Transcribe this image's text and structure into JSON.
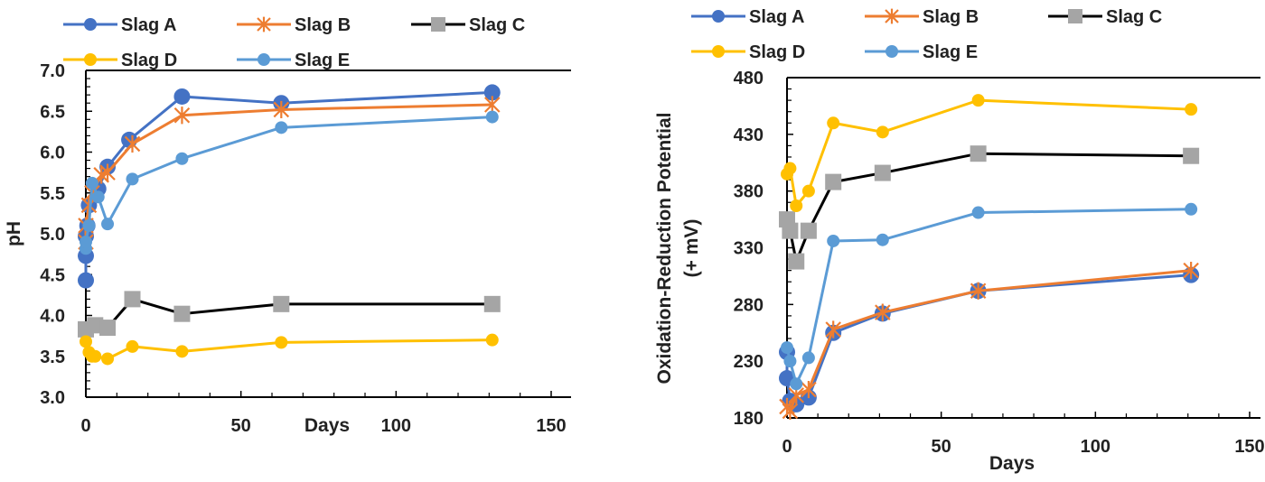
{
  "chart_data": [
    {
      "type": "line",
      "xlabel": "Days",
      "ylabel": "pH",
      "xlim": [
        0,
        150
      ],
      "ylim": [
        3.0,
        7.0
      ],
      "xticks": [
        "0",
        "50",
        "100",
        "150"
      ],
      "yticks": [
        "3.0",
        "3.5",
        "4.0",
        "4.5",
        "5.0",
        "5.5",
        "6.0",
        "6.5",
        "7.0"
      ],
      "grid": false,
      "legend": "top",
      "series": [
        {
          "name": "Slag A",
          "color": "#4472C4",
          "marker": "circle",
          "points": [
            [
              0,
              4.43
            ],
            [
              0,
              4.73
            ],
            [
              0,
              4.97
            ],
            [
              0.5,
              5.1
            ],
            [
              1,
              5.35
            ],
            [
              4,
              5.55
            ],
            [
              7,
              5.82
            ],
            [
              14,
              6.15
            ],
            [
              31,
              6.68
            ],
            [
              63,
              6.6
            ],
            [
              131,
              6.73
            ]
          ]
        },
        {
          "name": "Slag B",
          "color": "#ED7D31",
          "marker": "asterisk",
          "points": [
            [
              0,
              4.9
            ],
            [
              0,
              5.1
            ],
            [
              1,
              5.35
            ],
            [
              2,
              5.5
            ],
            [
              5,
              5.72
            ],
            [
              7,
              5.75
            ],
            [
              15,
              6.1
            ],
            [
              31,
              6.45
            ],
            [
              63,
              6.52
            ],
            [
              131,
              6.58
            ]
          ]
        },
        {
          "name": "Slag C",
          "color": "#000000",
          "markerColor": "#A5A5A5",
          "marker": "square",
          "points": [
            [
              0,
              3.83
            ],
            [
              3,
              3.88
            ],
            [
              7,
              3.85
            ],
            [
              15,
              4.2
            ],
            [
              31,
              4.02
            ],
            [
              63,
              4.14
            ],
            [
              131,
              4.14
            ]
          ]
        },
        {
          "name": "Slag D",
          "color": "#FFC000",
          "marker": "circle",
          "points": [
            [
              0,
              3.68
            ],
            [
              1,
              3.55
            ],
            [
              2,
              3.5
            ],
            [
              3,
              3.5
            ],
            [
              7,
              3.47
            ],
            [
              15,
              3.62
            ],
            [
              31,
              3.56
            ],
            [
              63,
              3.67
            ],
            [
              131,
              3.7
            ]
          ]
        },
        {
          "name": "Slag E",
          "color": "#5B9BD5",
          "marker": "circle",
          "points": [
            [
              0,
              4.82
            ],
            [
              0,
              4.9
            ],
            [
              1,
              5.1
            ],
            [
              2,
              5.62
            ],
            [
              4,
              5.45
            ],
            [
              7,
              5.12
            ],
            [
              15,
              5.67
            ],
            [
              31,
              5.92
            ],
            [
              63,
              6.3
            ],
            [
              131,
              6.43
            ]
          ]
        }
      ]
    },
    {
      "type": "line",
      "xlabel": "Days",
      "ylabel": "Oxidation-Reduction Potential",
      "ylabel2": "(+ mV)",
      "xlim": [
        0,
        150
      ],
      "ylim": [
        180,
        480
      ],
      "xticks": [
        "0",
        "50",
        "100",
        "150"
      ],
      "yticks": [
        "180",
        "230",
        "280",
        "330",
        "380",
        "430",
        "480"
      ],
      "grid": false,
      "legend": "top",
      "series": [
        {
          "name": "Slag A",
          "color": "#4472C4",
          "marker": "circle",
          "points": [
            [
              0,
              238
            ],
            [
              0,
              215
            ],
            [
              1,
              195
            ],
            [
              3,
              192
            ],
            [
              7,
              198
            ],
            [
              15,
              255
            ],
            [
              31,
              272
            ],
            [
              62,
              292
            ],
            [
              131,
              306
            ]
          ]
        },
        {
          "name": "Slag B",
          "color": "#ED7D31",
          "marker": "asterisk",
          "points": [
            [
              0,
              190
            ],
            [
              1,
              186
            ],
            [
              3,
              200
            ],
            [
              7,
              205
            ],
            [
              15,
              258
            ],
            [
              31,
              273
            ],
            [
              62,
              292
            ],
            [
              131,
              310
            ]
          ]
        },
        {
          "name": "Slag C",
          "color": "#000000",
          "markerColor": "#A5A5A5",
          "marker": "square",
          "points": [
            [
              0,
              355
            ],
            [
              1,
              345
            ],
            [
              3,
              318
            ],
            [
              7,
              345
            ],
            [
              15,
              388
            ],
            [
              31,
              396
            ],
            [
              62,
              413
            ],
            [
              131,
              411
            ]
          ]
        },
        {
          "name": "Slag D",
          "color": "#FFC000",
          "marker": "circle",
          "points": [
            [
              0,
              395
            ],
            [
              1,
              400
            ],
            [
              3,
              367
            ],
            [
              7,
              380
            ],
            [
              15,
              440
            ],
            [
              31,
              432
            ],
            [
              62,
              460
            ],
            [
              131,
              452
            ]
          ]
        },
        {
          "name": "Slag E",
          "color": "#5B9BD5",
          "marker": "circle",
          "points": [
            [
              0,
              242
            ],
            [
              1,
              230
            ],
            [
              3,
              210
            ],
            [
              7,
              233
            ],
            [
              15,
              336
            ],
            [
              31,
              337
            ],
            [
              62,
              361
            ],
            [
              131,
              364
            ]
          ]
        }
      ]
    }
  ]
}
